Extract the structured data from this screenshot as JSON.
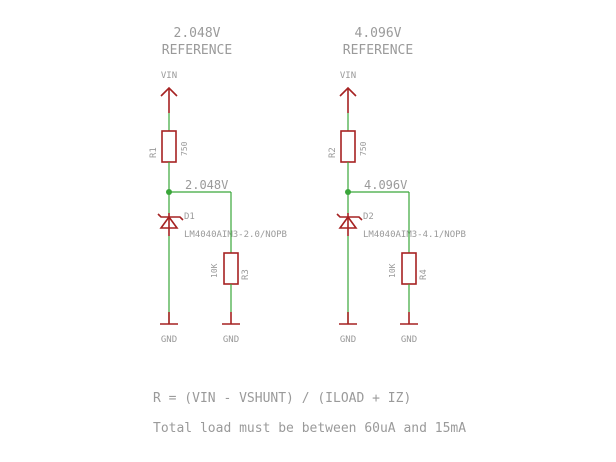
{
  "circuits": [
    {
      "title_line1": "2.048V",
      "title_line2": "REFERENCE",
      "supply_label": "VIN",
      "resistor_name": "R1",
      "resistor_value": "750",
      "net_label": "2.048V",
      "diode_name": "D1",
      "diode_part": "LM4040AIM3-2.0/NOPB",
      "load_resistor_name": "R3",
      "load_resistor_value": "10K",
      "gnd_left": "GND",
      "gnd_right": "GND"
    },
    {
      "title_line1": "4.096V",
      "title_line2": "REFERENCE",
      "supply_label": "VIN",
      "resistor_name": "R2",
      "resistor_value": "750",
      "net_label": "4.096V",
      "diode_name": "D2",
      "diode_part": "LM4040AIM3-4.1/NOPB",
      "load_resistor_name": "R4",
      "load_resistor_value": "10K",
      "gnd_left": "GND",
      "gnd_right": "GND"
    }
  ],
  "notes": {
    "formula": "R = (VIN - VSHUNT) / (ILOAD + IZ)",
    "load_range": "Total load must be between 60uA and 15mA"
  },
  "colors": {
    "wire": "#3aa63a",
    "component": "#a62222",
    "text": "#9a9a9a"
  }
}
